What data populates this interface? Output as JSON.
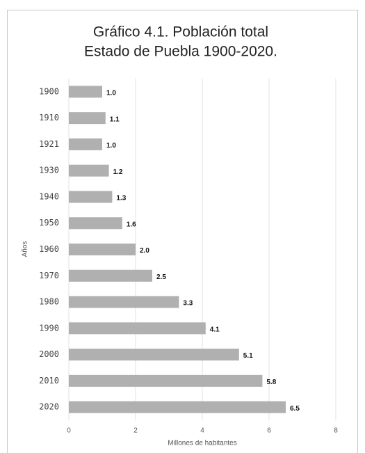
{
  "chart_data": {
    "type": "barh",
    "title": [
      "Gráfico 4.1. Población total",
      "Estado de Puebla 1900-2020."
    ],
    "xlabel": "Millones de habitantes",
    "ylabel": "Años",
    "categories": [
      "1900",
      "1910",
      "1921",
      "1930",
      "1940",
      "1950",
      "1960",
      "1970",
      "1980",
      "1990",
      "2000",
      "2010",
      "2020"
    ],
    "values": [
      1.0,
      1.1,
      1.0,
      1.2,
      1.3,
      1.6,
      2.0,
      2.5,
      3.3,
      4.1,
      5.1,
      5.8,
      6.5
    ],
    "value_labels": [
      "1.0",
      "1.1",
      "1.0",
      "1.2",
      "1.3",
      "1.6",
      "2.0",
      "2.5",
      "3.3",
      "4.1",
      "5.1",
      "5.8",
      "6.5"
    ],
    "color": "#b0b0b0",
    "xlim": [
      0,
      8
    ],
    "xticks": [
      0,
      2,
      4,
      6,
      8
    ],
    "grid": true
  }
}
